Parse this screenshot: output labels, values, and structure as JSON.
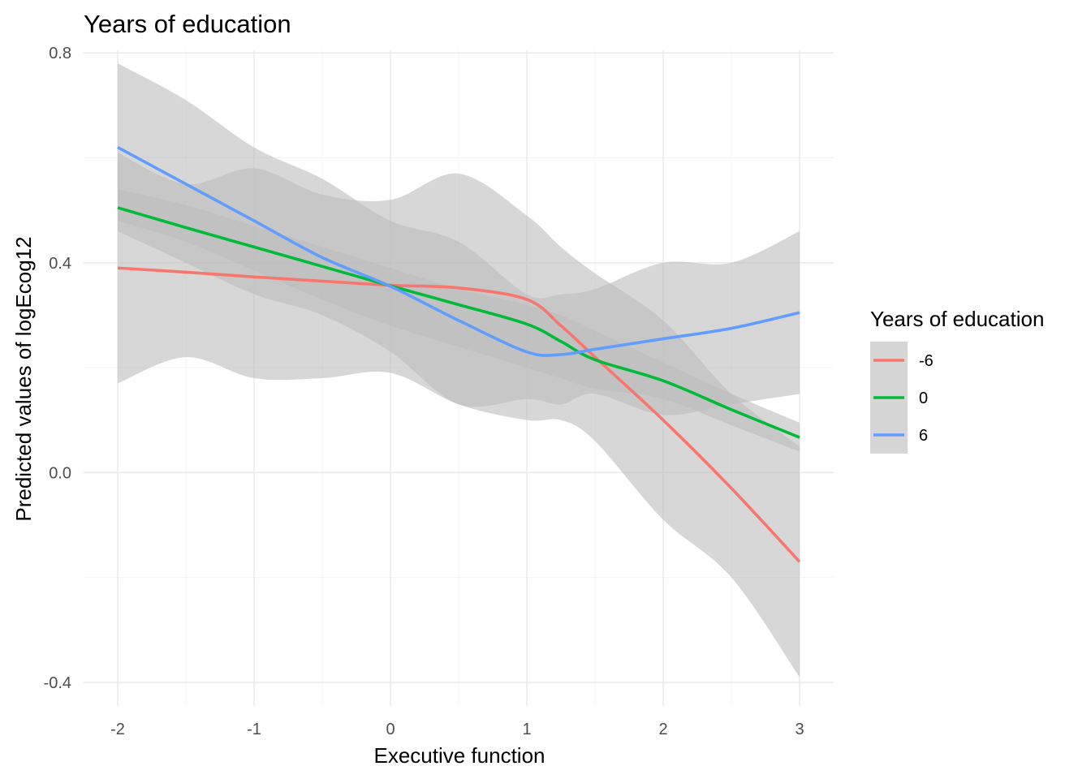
{
  "chart_data": {
    "type": "line",
    "title": "Years of education",
    "xlabel": "Executive function",
    "ylabel": "Predicted values of logEcog12",
    "xlim": [
      -2.25,
      3.25
    ],
    "ylim": [
      -0.445,
      0.805
    ],
    "x_ticks": [
      -2,
      -1,
      0,
      1,
      2,
      3
    ],
    "x_tick_labels": [
      "-2",
      "-1",
      "0",
      "1",
      "2",
      "3"
    ],
    "y_ticks": [
      -0.4,
      0.0,
      0.4,
      0.8
    ],
    "y_tick_labels": [
      "-0.4",
      "0.0",
      "0.4",
      "0.8"
    ],
    "grid": true,
    "legend": {
      "title": "Years of education",
      "position": "right"
    },
    "x": [
      -2,
      -1.5,
      -1,
      -0.5,
      0,
      0.5,
      1,
      1.25,
      1.5,
      2,
      2.5,
      3
    ],
    "series": [
      {
        "name": "-6",
        "color": "#F8766D",
        "values": [
          0.39,
          0.382,
          0.373,
          0.365,
          0.357,
          0.352,
          0.33,
          0.28,
          0.22,
          0.1,
          -0.03,
          -0.17
        ],
        "lower": [
          0.17,
          0.22,
          0.18,
          0.18,
          0.19,
          0.13,
          0.1,
          0.1,
          0.06,
          -0.09,
          -0.2,
          -0.39
        ],
        "upper": [
          0.61,
          0.55,
          0.58,
          0.53,
          0.52,
          0.57,
          0.49,
          0.43,
          0.38,
          0.29,
          0.15,
          0.05
        ]
      },
      {
        "name": "0",
        "color": "#00BA38",
        "values": [
          0.505,
          0.467,
          0.43,
          0.393,
          0.356,
          0.32,
          0.283,
          0.25,
          0.215,
          0.175,
          0.12,
          0.067
        ],
        "lower": [
          0.48,
          0.44,
          0.385,
          0.33,
          0.28,
          0.24,
          0.2,
          0.18,
          0.16,
          0.14,
          0.09,
          0.04
        ],
        "upper": [
          0.54,
          0.51,
          0.47,
          0.43,
          0.39,
          0.35,
          0.32,
          0.3,
          0.27,
          0.21,
          0.15,
          0.095
        ]
      },
      {
        "name": "6",
        "color": "#619CFF",
        "values": [
          0.62,
          0.55,
          0.48,
          0.41,
          0.355,
          0.29,
          0.23,
          0.225,
          0.235,
          0.255,
          0.275,
          0.305
        ],
        "lower": [
          0.46,
          0.4,
          0.34,
          0.3,
          0.23,
          0.13,
          0.14,
          0.13,
          0.15,
          0.11,
          0.13,
          0.15
        ],
        "upper": [
          0.78,
          0.71,
          0.62,
          0.56,
          0.48,
          0.44,
          0.34,
          0.34,
          0.35,
          0.4,
          0.4,
          0.46
        ]
      }
    ]
  }
}
